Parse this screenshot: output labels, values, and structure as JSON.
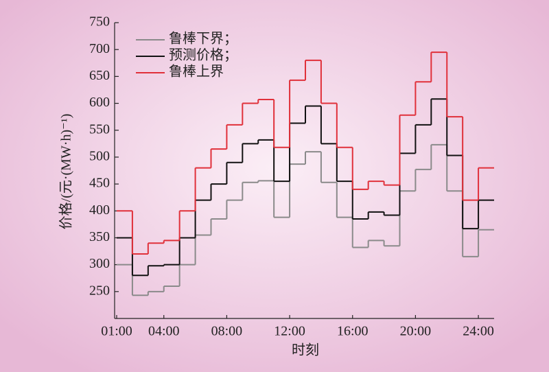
{
  "chart_data": {
    "type": "line",
    "step": "post",
    "xlabel": "时刻",
    "ylabel": "价格/(元·(MW·h)⁻¹)",
    "x": [
      1,
      2,
      3,
      4,
      5,
      6,
      7,
      8,
      9,
      10,
      11,
      12,
      13,
      14,
      15,
      16,
      17,
      18,
      19,
      20,
      21,
      22,
      23,
      24
    ],
    "series": [
      {
        "name": "鲁棒下界；",
        "color": "#8a8a8a",
        "values": [
          300,
          243,
          250,
          260,
          300,
          355,
          385,
          420,
          453,
          456,
          388,
          487,
          510,
          453,
          388,
          332,
          345,
          335,
          437,
          477,
          523,
          437,
          315,
          365
        ]
      },
      {
        "name": "预测价格；",
        "color": "#111111",
        "values": [
          350,
          280,
          298,
          300,
          350,
          420,
          450,
          490,
          525,
          532,
          455,
          563,
          595,
          525,
          455,
          385,
          398,
          392,
          507,
          560,
          608,
          503,
          367,
          420
        ]
      },
      {
        "name": "鲁棒上界",
        "color": "#e0303a",
        "values": [
          400,
          320,
          340,
          345,
          400,
          480,
          515,
          560,
          600,
          607,
          518,
          643,
          680,
          600,
          518,
          440,
          455,
          448,
          578,
          640,
          695,
          575,
          420,
          480
        ]
      }
    ],
    "xlim": [
      1,
      25
    ],
    "xticks": [
      {
        "value": 1,
        "label": "01:00"
      },
      {
        "value": 4,
        "label": "04:00"
      },
      {
        "value": 8,
        "label": "08:00"
      },
      {
        "value": 12,
        "label": "12:00"
      },
      {
        "value": 16,
        "label": "16:00"
      },
      {
        "value": 20,
        "label": "20:00"
      },
      {
        "value": 24,
        "label": "24:00"
      }
    ],
    "ylim": [
      200,
      750
    ],
    "yticks": [
      250,
      300,
      350,
      400,
      450,
      500,
      550,
      600,
      650,
      700,
      750
    ],
    "legend": "upper left"
  }
}
